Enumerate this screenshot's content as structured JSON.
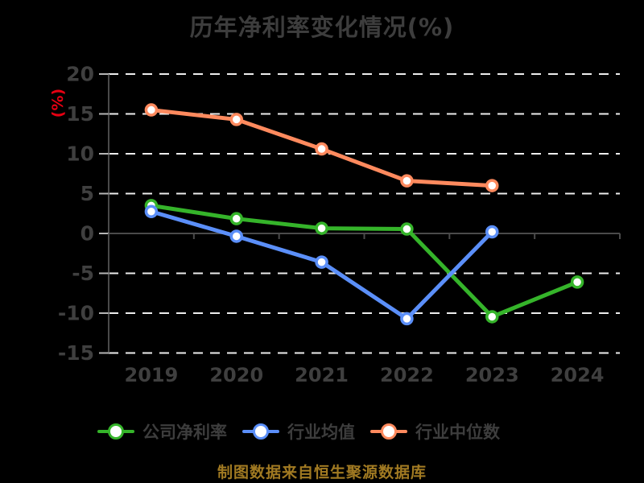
{
  "title": "历年净利率变化情况(%)",
  "footer": "制图数据来自恒生聚源数据库",
  "palette": {
    "background": "#000000",
    "title_text": "#3d3d3d",
    "axis_label_text": "#3f3f3f",
    "y_unit_text": "#e60012",
    "footer_text": "#a17a22",
    "gridline": "#ededed",
    "axis_line": "#4a4a4a",
    "y_tick": "#b5b5b5",
    "marker_fill": "#ffffff"
  },
  "chart_data": {
    "type": "line",
    "title": "历年净利率变化情况(%)",
    "xlabel": "",
    "ylabel": "(%)",
    "categories": [
      "2019",
      "2020",
      "2021",
      "2022",
      "2023",
      "2024"
    ],
    "series": [
      {
        "name": "公司净利率",
        "color": "#35b42a",
        "values": [
          3.5,
          1.85,
          0.65,
          0.55,
          -10.45,
          -6.1
        ]
      },
      {
        "name": "行业均值",
        "color": "#5b8ff9",
        "values": [
          2.75,
          -0.35,
          -3.6,
          -10.7,
          0.2,
          null
        ]
      },
      {
        "name": "行业中位数",
        "color": "#ff8a5e",
        "values": [
          15.5,
          14.3,
          10.6,
          6.6,
          6.0,
          null
        ]
      }
    ],
    "ylim": [
      -15,
      20
    ],
    "y_ticks": [
      20,
      15,
      10,
      5,
      0,
      -5,
      -10,
      -15
    ],
    "grid": "horizontal-dashed",
    "legend_position": "bottom",
    "marker": "circle-white-fill"
  }
}
